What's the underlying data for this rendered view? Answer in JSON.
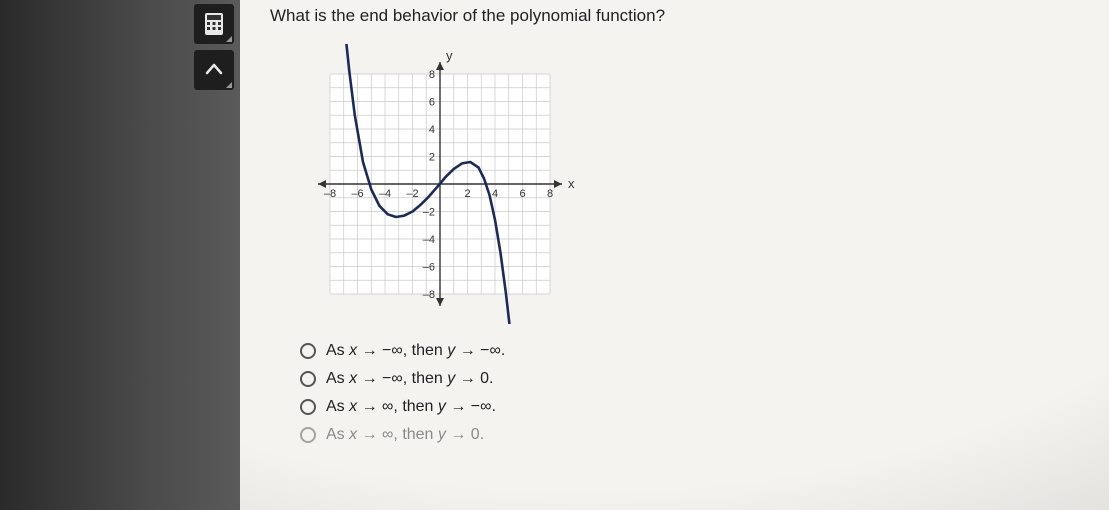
{
  "question": "What is the end behavior of the polynomial function?",
  "tools": {
    "calculator_label": "calculator",
    "collapse_label": "collapse"
  },
  "graph": {
    "x_axis_label": "x",
    "y_axis_label": "y",
    "grid_color": "#c9c9c9",
    "axis_color": "#333333",
    "curve_color": "#1a2a5a",
    "curve_width": 2.6,
    "background": "#ffffff",
    "tick_font_size": 11,
    "xmin": -8,
    "xmax": 8,
    "ymin": -8,
    "ymax": 8,
    "step": 2,
    "x_ticks": [
      -8,
      -6,
      -4,
      -2,
      2,
      4,
      6,
      8
    ],
    "y_ticks": [
      -8,
      -6,
      -4,
      -2,
      2,
      4,
      6,
      8
    ],
    "curve_points": [
      [
        -7.0,
        12.0
      ],
      [
        -6.6,
        8.2
      ],
      [
        -6.2,
        5.0
      ],
      [
        -5.6,
        1.6
      ],
      [
        -5.0,
        -0.4
      ],
      [
        -4.4,
        -1.6
      ],
      [
        -3.8,
        -2.2
      ],
      [
        -3.2,
        -2.4
      ],
      [
        -2.6,
        -2.3
      ],
      [
        -2.0,
        -2.0
      ],
      [
        -1.4,
        -1.5
      ],
      [
        -0.8,
        -0.9
      ],
      [
        -0.2,
        -0.2
      ],
      [
        0.4,
        0.5
      ],
      [
        1.0,
        1.1
      ],
      [
        1.6,
        1.5
      ],
      [
        2.2,
        1.6
      ],
      [
        2.8,
        1.2
      ],
      [
        3.2,
        0.4
      ],
      [
        3.6,
        -0.8
      ],
      [
        4.0,
        -2.6
      ],
      [
        4.4,
        -5.0
      ],
      [
        4.8,
        -8.0
      ],
      [
        5.2,
        -11.5
      ]
    ]
  },
  "options": [
    {
      "prefix": "As ",
      "v1": "x",
      "arrow1": " → −∞",
      "mid": ", then ",
      "v2": "y",
      "arrow2": " → −∞."
    },
    {
      "prefix": "As ",
      "v1": "x",
      "arrow1": " → −∞",
      "mid": ", then ",
      "v2": "y",
      "arrow2": " → 0."
    },
    {
      "prefix": "As ",
      "v1": "x",
      "arrow1": " → ∞",
      "mid": ", then ",
      "v2": "y",
      "arrow2": " → −∞."
    },
    {
      "prefix": "As ",
      "v1": "x",
      "arrow1": " → ∞",
      "mid": ", then ",
      "v2": "y",
      "arrow2": " → 0."
    }
  ]
}
